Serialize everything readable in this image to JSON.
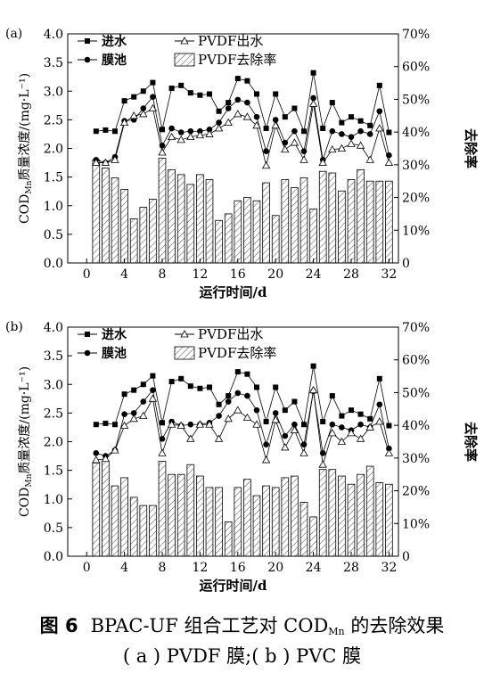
{
  "chart_data": [
    {
      "type": "bar",
      "panel_label": "(a)",
      "legend": {
        "inlet": "进水",
        "tank": "膜池",
        "effluent": "PVDF出水",
        "removal": "PVDF去除率"
      },
      "ylabel_prefix": "COD",
      "ylabel_sub": "Mn",
      "ylabel_suffix": "质量浓度/(mg·L⁻¹)",
      "y2label": "去除率",
      "xlabel": "运行时间/d",
      "xlim": [
        -2,
        33
      ],
      "ylim": [
        0,
        4
      ],
      "y2lim": [
        0,
        70
      ],
      "x_ticks": [
        "0",
        "4",
        "8",
        "12",
        "16",
        "20",
        "24",
        "28",
        "32"
      ],
      "y_ticks": [
        "0.0",
        "0.5",
        "1.0",
        "1.5",
        "2.0",
        "2.5",
        "3.0",
        "3.5",
        "4.0"
      ],
      "y2_ticks": [
        "0",
        "10%",
        "20%",
        "30%",
        "40%",
        "50%",
        "60%",
        "70%"
      ],
      "x": [
        1,
        2,
        3,
        4,
        5,
        6,
        7,
        8,
        9,
        10,
        11,
        12,
        13,
        14,
        15,
        16,
        17,
        18,
        19,
        20,
        21,
        22,
        23,
        24,
        25,
        26,
        27,
        28,
        29,
        30,
        31,
        32
      ],
      "series": [
        {
          "name": "进水",
          "values": [
            2.3,
            2.32,
            2.3,
            2.83,
            2.9,
            3.0,
            3.15,
            2.33,
            3.05,
            3.1,
            2.97,
            2.93,
            2.95,
            2.65,
            2.8,
            3.22,
            3.18,
            2.95,
            2.35,
            2.95,
            2.55,
            2.7,
            2.3,
            3.32,
            2.35,
            2.8,
            2.45,
            2.55,
            2.48,
            2.4,
            3.1,
            2.28
          ]
        },
        {
          "name": "膜池",
          "values": [
            1.8,
            1.75,
            1.85,
            2.48,
            2.5,
            2.7,
            2.9,
            2.05,
            2.35,
            2.28,
            2.3,
            2.3,
            2.33,
            2.45,
            2.7,
            2.85,
            2.8,
            2.55,
            1.95,
            2.5,
            2.1,
            2.3,
            1.95,
            2.88,
            1.8,
            2.3,
            2.25,
            2.2,
            2.3,
            2.25,
            2.65,
            1.88
          ]
        },
        {
          "name": "PVDF出水",
          "values": [
            1.75,
            1.75,
            1.8,
            2.45,
            2.57,
            2.6,
            2.7,
            1.93,
            2.2,
            2.15,
            2.2,
            2.23,
            2.25,
            2.35,
            2.45,
            2.6,
            2.55,
            2.4,
            1.7,
            2.4,
            1.98,
            2.1,
            1.8,
            2.78,
            1.75,
            1.98,
            2.0,
            2.08,
            2.05,
            1.8,
            2.35,
            1.75
          ]
        },
        {
          "name": "PVDF去除率",
          "axis": "right",
          "values": [
            31.5,
            29,
            26,
            22.5,
            13.5,
            17,
            19.5,
            32,
            28.5,
            27,
            24,
            27,
            25.5,
            13,
            15,
            19,
            20,
            19,
            24.5,
            14.5,
            25.5,
            23,
            26,
            16.5,
            28,
            27.5,
            22,
            25.5,
            28.5,
            25,
            25,
            25
          ]
        }
      ]
    },
    {
      "type": "bar",
      "panel_label": "(b)",
      "legend": {
        "inlet": "进水",
        "tank": "膜池",
        "effluent": "PVDF出水",
        "removal": "PVDF去除率"
      },
      "ylabel_prefix": "COD",
      "ylabel_sub": "Mn",
      "ylabel_suffix": "质量浓度/(mg·L⁻¹)",
      "y2label": "去除率",
      "xlabel": "运行时间/d",
      "xlim": [
        -2,
        33
      ],
      "ylim": [
        0,
        4
      ],
      "y2lim": [
        0,
        70
      ],
      "x_ticks": [
        "0",
        "4",
        "8",
        "12",
        "16",
        "20",
        "24",
        "28",
        "32"
      ],
      "y_ticks": [
        "0.0",
        "0.5",
        "1.0",
        "1.5",
        "2.0",
        "2.5",
        "3.0",
        "3.5",
        "4.0"
      ],
      "y2_ticks": [
        "0",
        "10%",
        "20%",
        "30%",
        "40%",
        "50%",
        "60%",
        "70%"
      ],
      "x": [
        1,
        2,
        3,
        4,
        5,
        6,
        7,
        8,
        9,
        10,
        11,
        12,
        13,
        14,
        15,
        16,
        17,
        18,
        19,
        20,
        21,
        22,
        23,
        24,
        25,
        26,
        27,
        28,
        29,
        30,
        31,
        32
      ],
      "series": [
        {
          "name": "进水",
          "values": [
            2.3,
            2.32,
            2.3,
            2.83,
            2.9,
            3.0,
            3.15,
            2.33,
            3.05,
            3.1,
            2.97,
            2.93,
            2.95,
            2.65,
            2.8,
            3.22,
            3.18,
            2.95,
            2.35,
            2.95,
            2.55,
            2.7,
            2.3,
            3.32,
            2.35,
            2.8,
            2.45,
            2.55,
            2.48,
            2.4,
            3.1,
            2.28
          ]
        },
        {
          "name": "膜池",
          "values": [
            1.8,
            1.75,
            1.85,
            2.48,
            2.5,
            2.7,
            2.9,
            2.05,
            2.35,
            2.28,
            2.3,
            2.3,
            2.33,
            2.45,
            2.7,
            2.85,
            2.8,
            2.55,
            1.95,
            2.5,
            2.1,
            2.3,
            1.95,
            2.88,
            1.8,
            2.3,
            2.25,
            2.2,
            2.3,
            2.25,
            2.65,
            1.88
          ]
        },
        {
          "name": "PVDF出水",
          "values": [
            1.68,
            1.7,
            1.85,
            2.28,
            2.4,
            2.45,
            2.75,
            1.8,
            2.3,
            2.28,
            2.05,
            2.3,
            2.3,
            2.05,
            2.4,
            2.55,
            2.42,
            2.3,
            1.68,
            2.38,
            1.9,
            2.2,
            1.8,
            2.9,
            1.6,
            2.15,
            2.0,
            2.15,
            2.05,
            2.25,
            2.35,
            1.8
          ]
        },
        {
          "name": "PVDF去除率",
          "axis": "right",
          "values": [
            28.5,
            29,
            21.5,
            24,
            18,
            15.5,
            15.5,
            29,
            25,
            25,
            28,
            24.5,
            21,
            21,
            10.5,
            21,
            23.5,
            18.5,
            21.5,
            21,
            24,
            24.5,
            16.5,
            12,
            26.5,
            26.5,
            24.5,
            22,
            25,
            27.5,
            22.5,
            22
          ]
        }
      ]
    }
  ],
  "caption": {
    "fig_no": "图 6",
    "line1_pre": "BPAC-UF 组合工艺对 COD",
    "line1_sub": "Mn",
    "line1_post": " 的去除效果",
    "line2": "( a ) PVDF 膜;( b ) PVC 膜"
  }
}
